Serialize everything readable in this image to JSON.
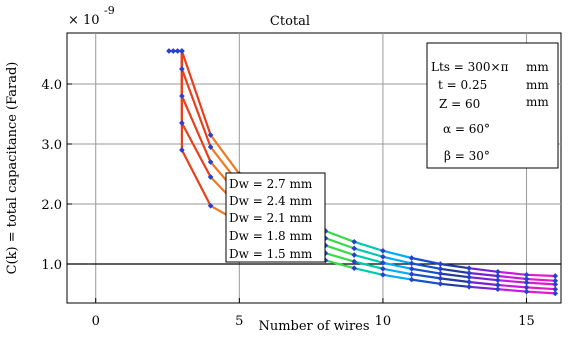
{
  "chart_data": {
    "type": "line",
    "title": "Ctotal",
    "xlabel": "Number of wires",
    "ylabel": "C(k) = total capacitance (Farad)",
    "y_multiplier": "× 10",
    "y_exponent": "-9",
    "xlim": [
      -1,
      16.2
    ],
    "ylim": [
      0.35,
      4.85
    ],
    "x_ticks": [
      0,
      5,
      10,
      15
    ],
    "x_tick_labels": [
      "0",
      "5",
      "10",
      "15"
    ],
    "y_ticks": [
      1.0,
      2.0,
      3.0,
      4.0
    ],
    "y_tick_labels": [
      "1.0",
      "2.0",
      "3.0",
      "4.0"
    ],
    "grid": true,
    "reference_line_y": 1.0,
    "marker_color": "#2a3fcc",
    "series": [
      {
        "name": "Dw = 2.7 mm",
        "x": [
          3,
          4,
          5,
          6,
          7,
          8,
          9,
          10,
          11,
          12,
          13,
          14,
          15,
          16
        ],
        "y": [
          4.55,
          3.15,
          2.5,
          2.08,
          1.78,
          1.55,
          1.37,
          1.22,
          1.1,
          1.0,
          0.93,
          0.87,
          0.82,
          0.8
        ]
      },
      {
        "name": "Dw = 2.4 mm",
        "x": [
          3,
          4,
          5,
          6,
          7,
          8,
          9,
          10,
          11,
          12,
          13,
          14,
          15,
          16
        ],
        "y": [
          4.25,
          2.95,
          2.33,
          1.93,
          1.65,
          1.43,
          1.26,
          1.12,
          1.01,
          0.92,
          0.85,
          0.8,
          0.75,
          0.72
        ]
      },
      {
        "name": "Dw = 2.1 mm",
        "x": [
          3,
          4,
          5,
          6,
          7,
          8,
          9,
          10,
          11,
          12,
          13,
          14,
          15,
          16
        ],
        "y": [
          3.8,
          2.7,
          2.14,
          1.77,
          1.51,
          1.31,
          1.15,
          1.02,
          0.92,
          0.84,
          0.78,
          0.73,
          0.69,
          0.66
        ]
      },
      {
        "name": "Dw = 1.8 mm",
        "x": [
          3,
          4,
          5,
          6,
          7,
          8,
          9,
          10,
          11,
          12,
          13,
          14,
          15,
          16
        ],
        "y": [
          3.35,
          2.45,
          1.95,
          1.6,
          1.36,
          1.18,
          1.04,
          0.92,
          0.83,
          0.76,
          0.7,
          0.65,
          0.61,
          0.58
        ]
      },
      {
        "name": "Dw = 1.5 mm",
        "x": [
          3,
          4,
          5,
          6,
          7,
          8,
          9,
          10,
          11,
          12,
          13,
          14,
          15,
          16
        ],
        "y": [
          2.9,
          1.97,
          1.7,
          1.42,
          1.22,
          1.06,
          0.93,
          0.82,
          0.74,
          0.67,
          0.62,
          0.58,
          0.54,
          0.51
        ]
      }
    ],
    "top_points_x": [
      2.55,
      2.7,
      2.85,
      3.0
    ],
    "top_points_y": 4.55,
    "segment_colors": [
      "#e8401c",
      "#f07820",
      "#f5a623",
      "#ffd400",
      "#b8e000",
      "#39d94a",
      "#00c9b0",
      "#00aaff",
      "#1450c8",
      "#233a9e",
      "#7a1fd6",
      "#c21ddc",
      "#e01ccf",
      "#e8289a"
    ],
    "params_box": {
      "lines": [
        {
          "label": "Lts = 300×π",
          "unit": "mm"
        },
        {
          "label": "t = 0.25",
          "unit": "mm"
        },
        {
          "label": "Z = 60",
          "unit": "mm"
        },
        {
          "label": "α = 60°",
          "unit": ""
        },
        {
          "label": "β = 30°",
          "unit": ""
        }
      ]
    },
    "legend_box": [
      "Dw = 2.7 mm",
      "Dw = 2.4 mm",
      "Dw = 2.1 mm",
      "Dw = 1.8 mm",
      "Dw = 1.5 mm"
    ]
  }
}
